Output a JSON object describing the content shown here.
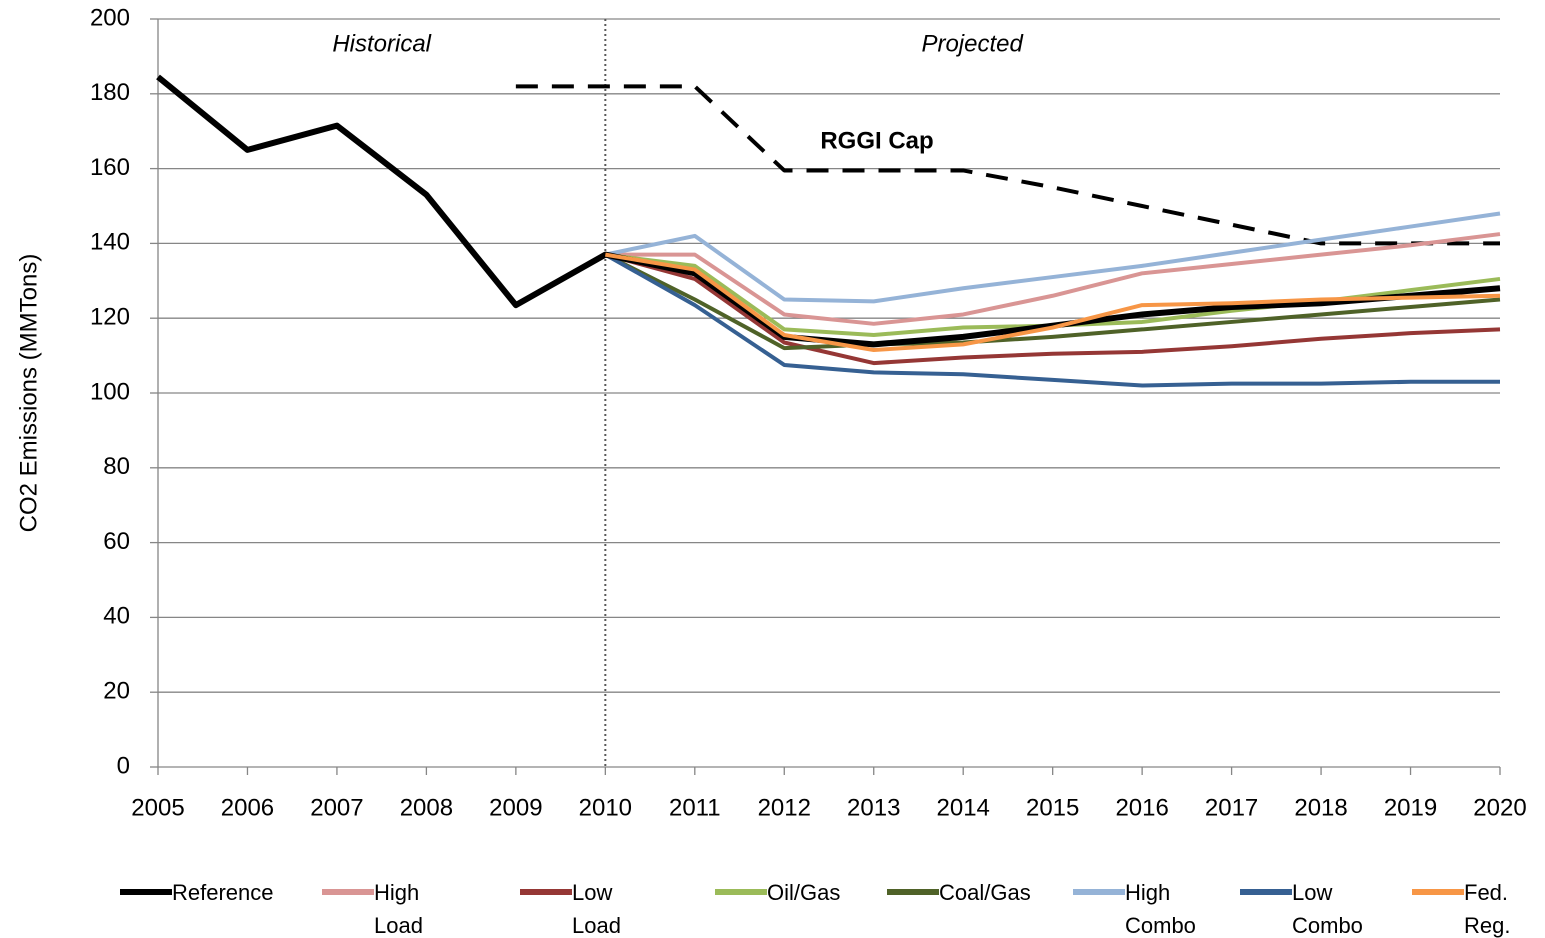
{
  "chart_data": {
    "type": "line",
    "y_label": "CO2 Emissions (MMTons)",
    "x": [
      2005,
      2006,
      2007,
      2008,
      2009,
      2010,
      2011,
      2012,
      2013,
      2014,
      2015,
      2016,
      2017,
      2018,
      2019,
      2020
    ],
    "xlim": [
      2005,
      2020
    ],
    "xticks": [
      2005,
      2006,
      2007,
      2008,
      2009,
      2010,
      2011,
      2012,
      2013,
      2014,
      2015,
      2016,
      2017,
      2018,
      2019,
      2020
    ],
    "ylim": [
      0,
      200
    ],
    "yticks": [
      0,
      20,
      40,
      60,
      80,
      100,
      120,
      140,
      160,
      180,
      200
    ],
    "grid": true,
    "legend": "bottom",
    "divider": 2010,
    "annotations": [
      {
        "text": "Historical",
        "x": 2007.5
      },
      {
        "text": "Projected",
        "x": 2014.1
      }
    ],
    "cap": {
      "name": "RGGI Cap",
      "color": "#000000",
      "values": [
        null,
        null,
        null,
        null,
        182,
        182,
        182,
        159.5,
        159.5,
        159.5,
        155,
        150,
        145,
        140,
        140,
        140
      ]
    },
    "series": [
      {
        "name": "High Load",
        "color": "#d99594",
        "values": [
          null,
          null,
          null,
          null,
          null,
          137,
          137,
          121,
          118.5,
          121,
          126,
          132,
          134.5,
          137,
          139.5,
          142.5
        ]
      },
      {
        "name": "Low Load",
        "color": "#953735",
        "values": [
          null,
          null,
          null,
          null,
          null,
          137,
          130.5,
          113.5,
          108,
          109.5,
          110.5,
          111,
          112.5,
          114.5,
          116,
          117
        ]
      },
      {
        "name": "Oil/Gas",
        "color": "#9bbb59",
        "values": [
          null,
          null,
          null,
          null,
          null,
          137,
          134,
          117,
          115.5,
          117.5,
          118,
          119,
          122,
          124.5,
          127.5,
          130.5
        ]
      },
      {
        "name": "Coal/Gas",
        "color": "#4f6228",
        "values": [
          null,
          null,
          null,
          null,
          null,
          137,
          125,
          112,
          113,
          113.5,
          115,
          117,
          119,
          121,
          123,
          125
        ]
      },
      {
        "name": "High Combo",
        "color": "#95b3d7",
        "values": [
          null,
          null,
          null,
          null,
          null,
          137,
          142,
          125,
          124.5,
          128,
          131,
          134,
          137.5,
          141,
          144.5,
          148
        ]
      },
      {
        "name": "Low Combo",
        "color": "#366092",
        "values": [
          null,
          null,
          null,
          null,
          null,
          137,
          123.5,
          107.5,
          105.5,
          105,
          103.5,
          102,
          102.5,
          102.5,
          103,
          103
        ]
      },
      {
        "name": "Reference",
        "color": "#000000",
        "values": [
          184.5,
          165,
          171.5,
          153,
          123.5,
          137,
          132,
          115,
          113,
          115,
          118,
          121,
          123,
          124,
          126,
          128
        ]
      },
      {
        "name": "Fed. Reg.",
        "color": "#f79646",
        "values": [
          null,
          null,
          null,
          null,
          null,
          137,
          133,
          115.5,
          111.5,
          113,
          117.5,
          123.5,
          124,
          125,
          125.5,
          126
        ]
      }
    ]
  }
}
